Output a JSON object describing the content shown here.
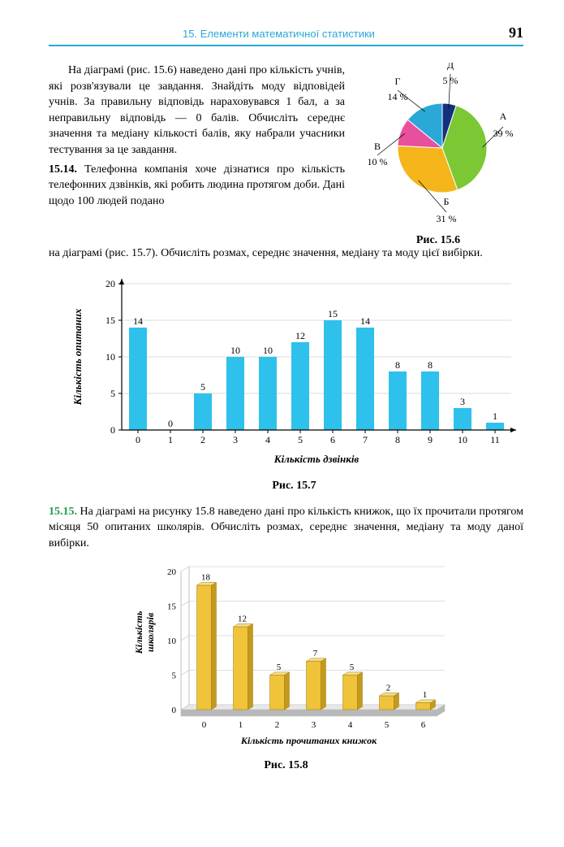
{
  "header": {
    "section": "15. Елементи математичної статистики",
    "page": "91"
  },
  "paragraph1": "На діаграмі (рис. 15.6) наведено дані про кількість учнів, які розв'язували це завдання. Знайдіть моду відповідей учнів. За правильну відповідь нараховувався 1 бал, а за неправильну відповідь — 0 балів. Обчисліть середнє значення та медіану кількості балів, яку набрали учасники тестування за це завдання.",
  "task14": {
    "num": "15.14.",
    "text": " Телефонна компанія хоче дізнатися про кількість телефонних дзвінків, які робить людина протягом доби. Дані щодо 100 людей подано на діаграмі (рис. 15.7). Обчисліть розмах, середнє значення, медіану та моду цієї вибірки."
  },
  "task15": {
    "num": "15.15.",
    "text": " На діаграмі на рисунку 15.8 наведено дані про кількість книжок, що їх прочитали протягом місяця 50 опитаних школярів. Обчисліть розмах, середнє значення, медіану та моду даної вибірки."
  },
  "pie": {
    "caption": "Рис. 15.6",
    "slices": [
      {
        "label": "А",
        "pct": "39 %",
        "value": 39,
        "color": "#7bc834"
      },
      {
        "label": "Б",
        "pct": "31 %",
        "value": 31,
        "color": "#f5b51b"
      },
      {
        "label": "В",
        "pct": "10 %",
        "value": 10,
        "color": "#e84f9c"
      },
      {
        "label": "Г",
        "pct": "14 %",
        "value": 14,
        "color": "#2aa8d8"
      },
      {
        "label": "Д",
        "pct": "5 %",
        "value": 5,
        "color": "#14307d"
      }
    ],
    "border_color": "#ffffff",
    "label_fontsize": 12
  },
  "bar": {
    "caption": "Рис. 15.7",
    "ylabel": "Кількість опитаних",
    "xlabel": "Кількість дзвінків",
    "categories": [
      "0",
      "1",
      "2",
      "3",
      "4",
      "5",
      "6",
      "7",
      "8",
      "9",
      "10",
      "11"
    ],
    "values": [
      14,
      0,
      5,
      10,
      10,
      12,
      15,
      14,
      8,
      8,
      3,
      1
    ],
    "bar_color": "#2ec1eb",
    "ylim": [
      0,
      20
    ],
    "ytick_step": 5,
    "axis_color": "#000000",
    "grid_color": "#b8b8b8",
    "value_fontsize": 12,
    "label_fontsize": 13,
    "bar_width": 0.55
  },
  "bar3d": {
    "caption": "Рис. 15.8",
    "ylabel": "Кількість школярів",
    "xlabel": "Кількість прочитаних книжок",
    "categories": [
      "0",
      "1",
      "2",
      "3",
      "4",
      "5",
      "6"
    ],
    "values": [
      18,
      12,
      5,
      7,
      5,
      2,
      1
    ],
    "bar_front": "#efc43a",
    "bar_side": "#c49a1e",
    "bar_top": "#f6de8e",
    "floor_top": "#e8e8e8",
    "floor_side": "#b8b8b8",
    "grid_color": "#bfbfbf",
    "ylim": [
      0,
      20
    ],
    "ytick_step": 5,
    "value_fontsize": 11,
    "label_fontsize": 12
  }
}
